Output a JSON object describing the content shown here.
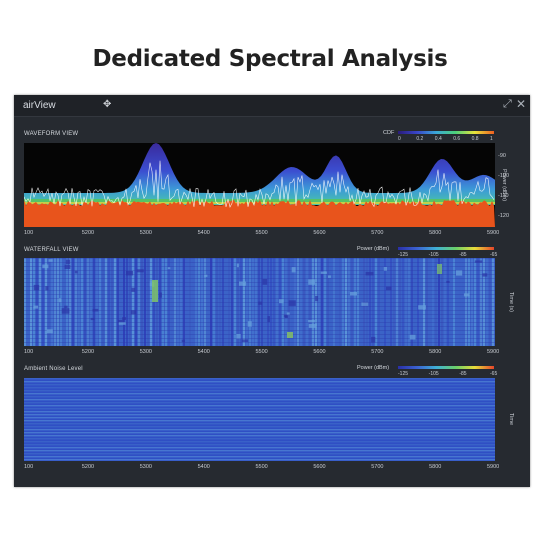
{
  "page": {
    "headline": "Dedicated Spectral Analysis"
  },
  "window": {
    "title": "airView",
    "icons": {
      "move": "move-icon",
      "expand": "expand-icon",
      "close": "close-icon"
    }
  },
  "waveform": {
    "title": "WAVEFORM VIEW",
    "legend_title": "CDF",
    "legend_ticks": [
      "0",
      "0.2",
      "0.4",
      "0.6",
      "0.8",
      "1"
    ],
    "y_ticks": [
      "-90",
      "-100",
      "-110",
      "-120"
    ],
    "y_label": "Power (dBm)"
  },
  "waterfall": {
    "title": "WATERFALL VIEW",
    "legend_title": "Power (dBm)",
    "legend_ticks": [
      "-125",
      "-105",
      "-85",
      "-65"
    ],
    "y_label": "Time (s)"
  },
  "ambient": {
    "title": "Ambient Noise Level",
    "legend_title": "Power (dBm)",
    "legend_ticks": [
      "-125",
      "-105",
      "-85",
      "-65"
    ],
    "y_label": "Time"
  },
  "x_ticks": [
    "100",
    "5200",
    "5300",
    "5400",
    "5500",
    "5600",
    "5700",
    "5800",
    "5900"
  ],
  "colors": {
    "noise_floor": "#e8541c",
    "trace": "#ffffff",
    "waterfall_base": "#3b63c7",
    "ambient_base": "#2f4fc4"
  }
}
